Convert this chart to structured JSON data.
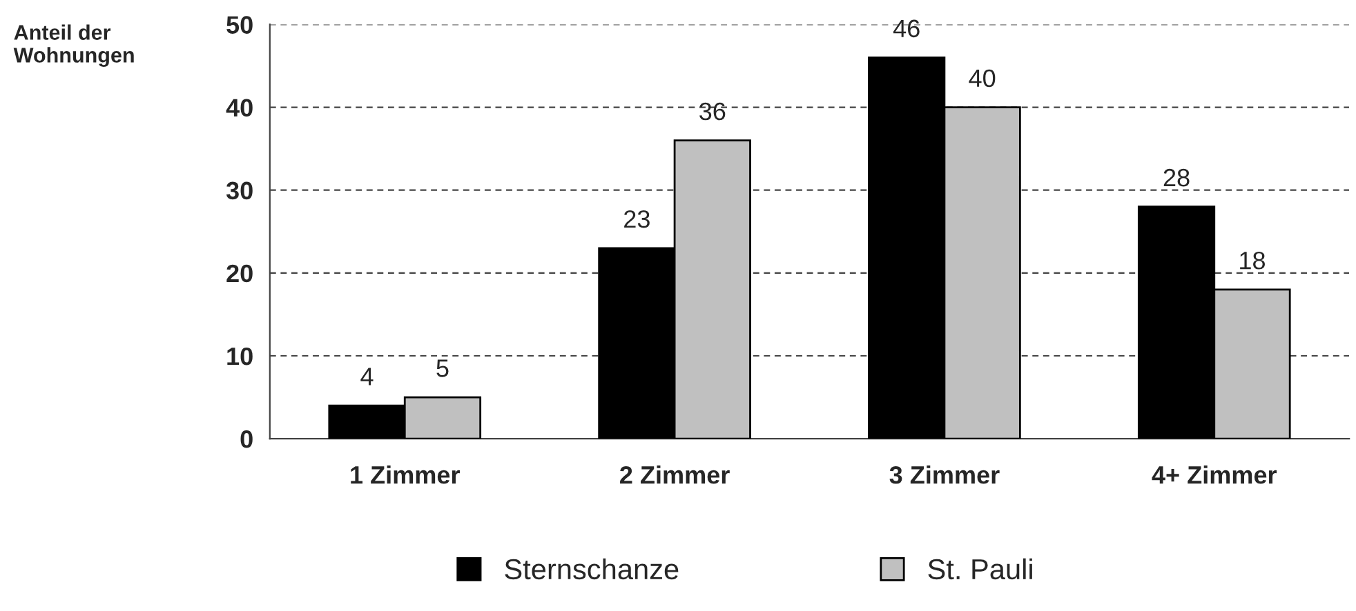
{
  "chart_data": {
    "type": "bar",
    "ylabel": "Anteil der\nWohnungen",
    "categories": [
      "1 Zimmer",
      "2 Zimmer",
      "3 Zimmer",
      "4+ Zimmer"
    ],
    "series": [
      {
        "name": "Sternschanze",
        "color": "#000000",
        "values": [
          4,
          23,
          46,
          28
        ]
      },
      {
        "name": "St. Pauli",
        "color": "#c0c0c0",
        "values": [
          5,
          36,
          40,
          18
        ]
      }
    ],
    "ylim": [
      0,
      50
    ],
    "yticks": [
      0,
      10,
      20,
      30,
      40,
      50
    ],
    "grid": "y",
    "legend": "bottom",
    "data_labels": true
  }
}
